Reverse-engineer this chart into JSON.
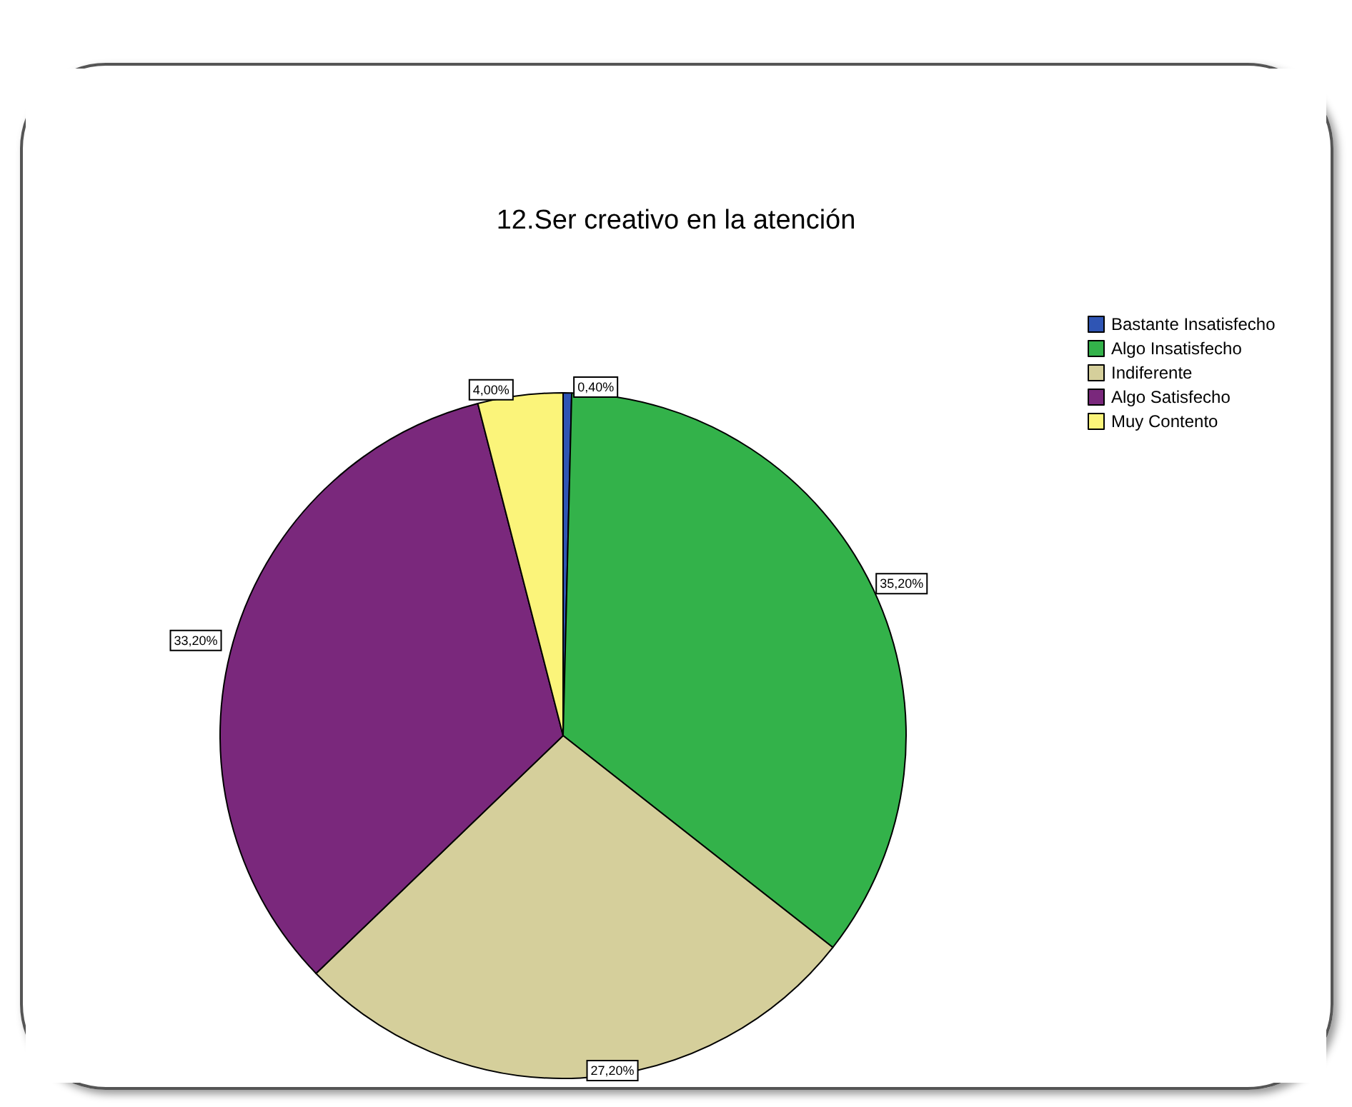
{
  "chart_data": {
    "type": "pie",
    "title": "12.Ser creativo en la atención",
    "categories": [
      "Bastante Insatisfecho",
      "Algo Insatisfecho",
      "Indiferente",
      "Algo Satisfecho",
      "Muy Contento"
    ],
    "values": [
      0.4,
      35.2,
      27.2,
      33.2,
      4.0
    ],
    "colors": [
      "#2f55b4",
      "#33b24a",
      "#d5cf9b",
      "#7a287c",
      "#fbf47a"
    ],
    "value_labels": [
      "0,40%",
      "35,20%",
      "27,20%",
      "33,20%",
      "4,00%"
    ],
    "legend": "top right"
  }
}
